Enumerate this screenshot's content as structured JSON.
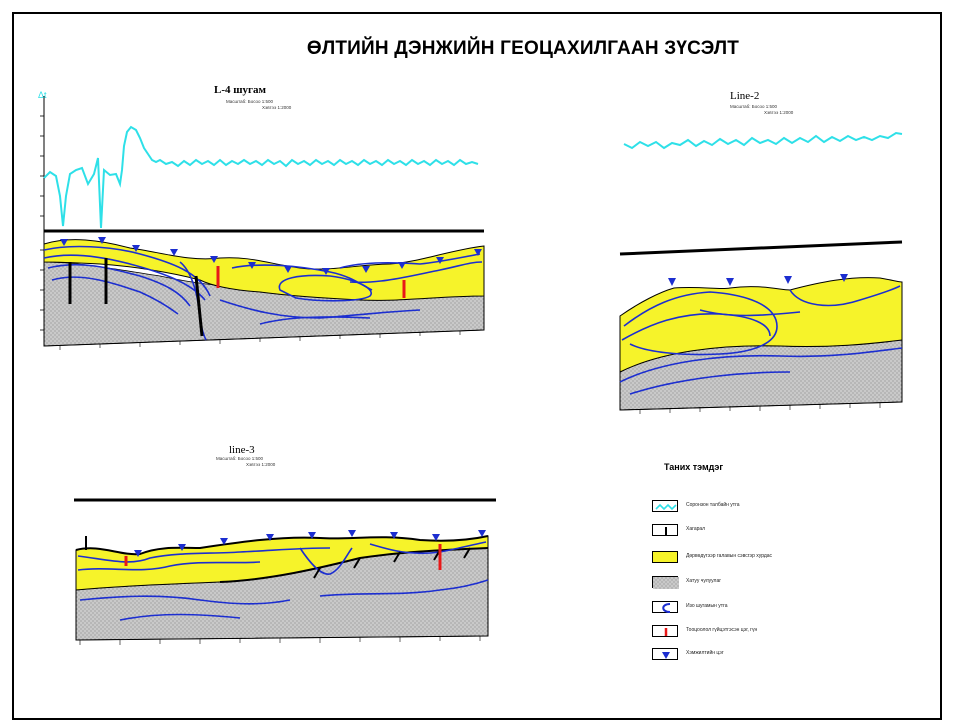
{
  "title": "ӨЛТИЙН ДЭНЖИЙН ГЕОЦАХИЛГААН ЗҮСЭЛТ",
  "colors": {
    "curve": "#2ee0e8",
    "sand": "#f6f32a",
    "rock": "#c8c8c8",
    "contour": "#1c2ed0",
    "well_red": "#e81818",
    "marker": "#1c2ed0"
  },
  "sections": {
    "l4": {
      "title": "L-4 шугам",
      "scale_v": "Масштаб: Босоо 1:500",
      "scale_h": "Хэвтээ 1:2000",
      "axis_label": "Δt"
    },
    "line2": {
      "title": "Line-2",
      "scale_v": "Масштаб: Босоо 1:500",
      "scale_h": "Хэвтээ 1:2000"
    },
    "line3": {
      "title": "line-3",
      "scale_v": "Масштаб: Босоо 1:500",
      "scale_h": "Хэвтээ 1:2000"
    }
  },
  "legend": {
    "title": "Таних тэмдэг",
    "items": [
      {
        "icon": "wave-icon",
        "label": "Соронзон талбайн утга"
      },
      {
        "icon": "fault-icon",
        "label": "Хагарал"
      },
      {
        "icon": "sand-swatch",
        "label": "Дөрвөдүгээр галавын сэвсгэр хурдас"
      },
      {
        "icon": "rock-swatch",
        "label": "Хатуу чулуулаг"
      },
      {
        "icon": "contour-icon",
        "label": "Изо шугамын утга"
      },
      {
        "icon": "well-icon",
        "label": "Тооцоолол гүйцэтгэсэн цэг, гүн"
      },
      {
        "icon": "station-icon",
        "label": "Хэмжилтийн цэг"
      }
    ]
  }
}
